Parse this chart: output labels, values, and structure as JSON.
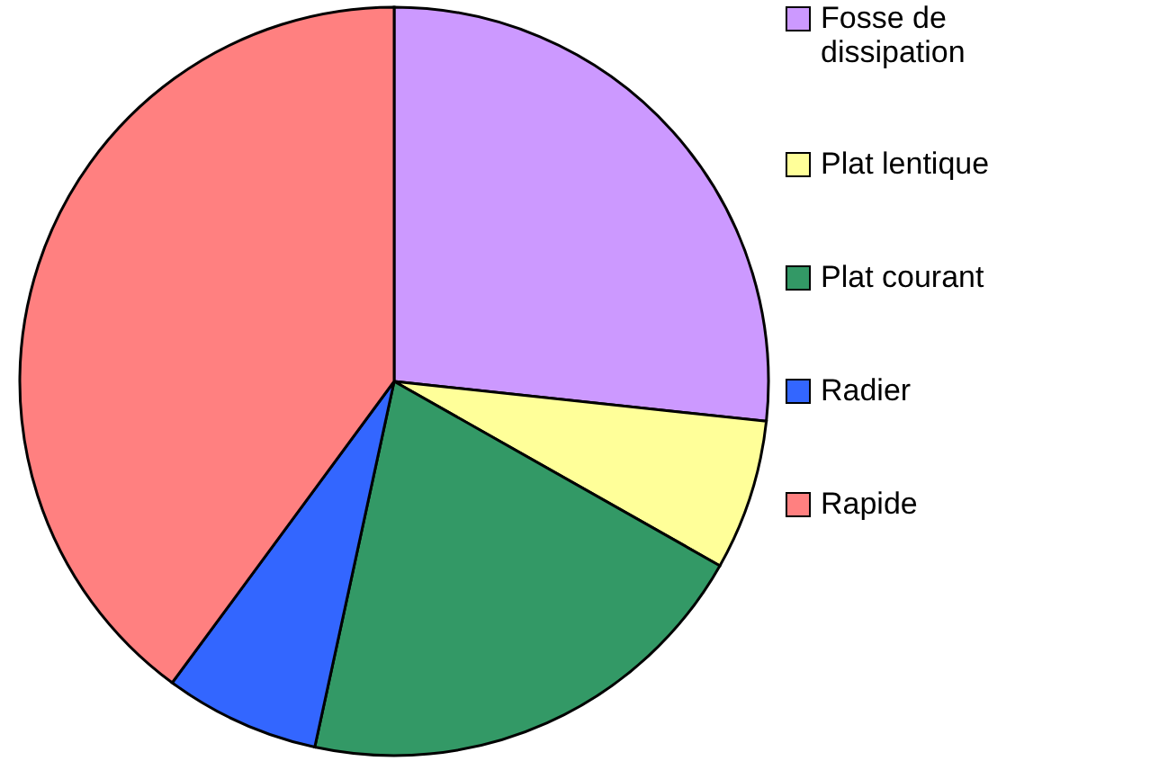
{
  "chart_data": {
    "type": "pie",
    "categories": [
      "Fosse de dissipation",
      "Plat lentique",
      "Plat courant",
      "Radier",
      "Rapide"
    ],
    "values": [
      26.7,
      6.5,
      20.2,
      6.7,
      39.9
    ],
    "colors": [
      "#cc99ff",
      "#ffff99",
      "#339966",
      "#3366ff",
      "#ff8080"
    ],
    "legend": "right"
  }
}
